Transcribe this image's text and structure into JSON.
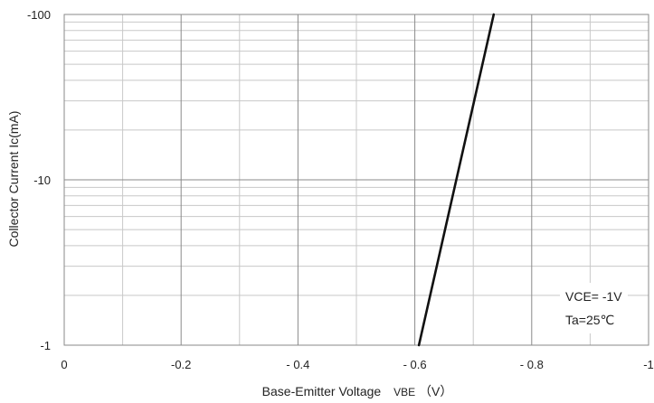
{
  "chart_data": {
    "type": "line",
    "xlabel": "Base-Emitter Voltage",
    "xlabel_symbol": "VBE",
    "xlabel_unit": "（V）",
    "ylabel": "Collector Current   Ic(mA)",
    "x_ticks": [
      0,
      -0.2,
      -0.4,
      -0.6,
      -0.8,
      -1
    ],
    "x_tick_labels": [
      "0",
      "-0.2",
      "- 0.4",
      "- 0.6",
      "- 0.8",
      "-1"
    ],
    "y_ticks": [
      -1,
      -10,
      -100
    ],
    "y_tick_labels": [
      "-1",
      "-10",
      "-100"
    ],
    "xlim": [
      0,
      -1
    ],
    "ylim": [
      -1,
      -100
    ],
    "y_scale": "log",
    "grid": true,
    "annotations": [
      "VCE= -1V",
      "Ta=25℃"
    ],
    "series": [
      {
        "x": [
          -0.607,
          -0.735
        ],
        "y": [
          -1,
          -100
        ]
      }
    ]
  }
}
